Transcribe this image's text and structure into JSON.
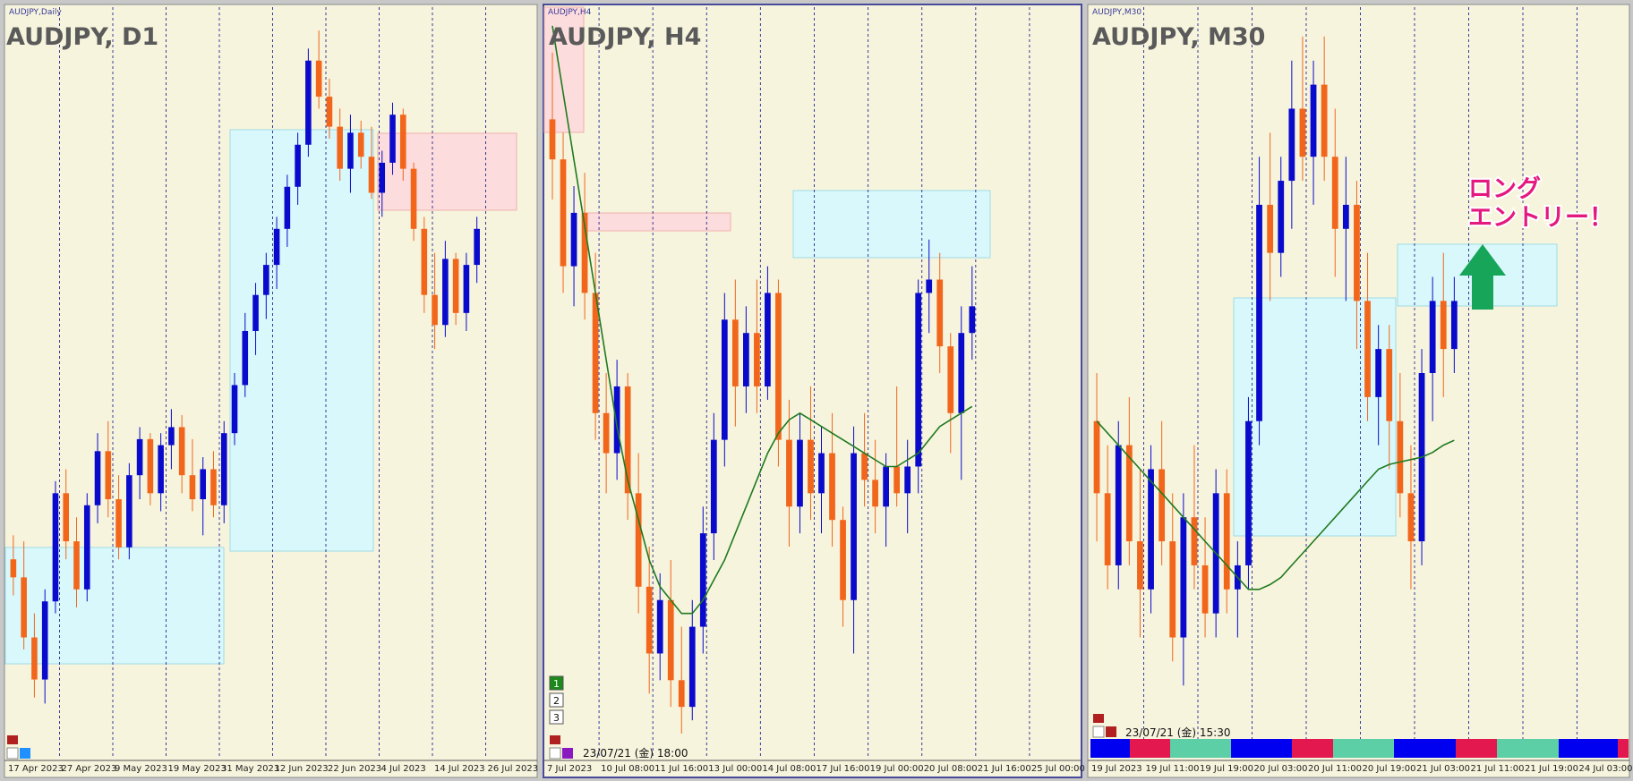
{
  "panels": [
    {
      "label": "AUDJPY,Daily",
      "title": "AUDJPY, D1",
      "date_labels": [
        "17 Apr 2023",
        "27 Apr 2023",
        "9 May 2023",
        "19 May 2023",
        "31 May 2023",
        "12 Jun 2023",
        "22 Jun 2023",
        "4 Jul 2023",
        "14 Jul 2023",
        "26 Jul 2023"
      ],
      "chart_data": {
        "type": "candlestick",
        "up_color": "#0a0acd",
        "down_color": "#f2661c",
        "ylim": [
          86,
          98
        ],
        "ohlc": [
          [
            88.9,
            89.3,
            88.3,
            88.6
          ],
          [
            88.6,
            89.2,
            87.4,
            87.6
          ],
          [
            87.6,
            88.0,
            86.6,
            86.9
          ],
          [
            86.9,
            88.4,
            86.5,
            88.2
          ],
          [
            88.2,
            90.2,
            88.0,
            90.0
          ],
          [
            90.0,
            90.4,
            88.9,
            89.2
          ],
          [
            89.2,
            89.6,
            88.1,
            88.4
          ],
          [
            88.4,
            90.0,
            88.2,
            89.8
          ],
          [
            89.8,
            91.0,
            89.5,
            90.7
          ],
          [
            90.7,
            91.2,
            89.6,
            89.9
          ],
          [
            89.9,
            90.3,
            88.9,
            89.1
          ],
          [
            89.1,
            90.5,
            88.9,
            90.3
          ],
          [
            90.3,
            91.1,
            89.9,
            90.9
          ],
          [
            90.9,
            91.0,
            89.8,
            90.0
          ],
          [
            90.0,
            91.0,
            89.7,
            90.8
          ],
          [
            90.8,
            91.4,
            90.4,
            91.1
          ],
          [
            91.1,
            91.3,
            90.0,
            90.3
          ],
          [
            90.3,
            90.9,
            89.7,
            89.9
          ],
          [
            89.9,
            90.6,
            89.3,
            90.4
          ],
          [
            90.4,
            90.7,
            89.6,
            89.8
          ],
          [
            89.8,
            91.2,
            89.5,
            91.0
          ],
          [
            91.0,
            92.0,
            90.8,
            91.8
          ],
          [
            91.8,
            93.0,
            91.6,
            92.7
          ],
          [
            92.7,
            93.5,
            92.3,
            93.3
          ],
          [
            93.3,
            94.0,
            92.9,
            93.8
          ],
          [
            93.8,
            94.6,
            93.4,
            94.4
          ],
          [
            94.4,
            95.3,
            94.1,
            95.1
          ],
          [
            95.1,
            96.0,
            94.8,
            95.8
          ],
          [
            95.8,
            97.4,
            95.6,
            97.2
          ],
          [
            97.2,
            97.7,
            96.4,
            96.6
          ],
          [
            96.6,
            96.9,
            95.9,
            96.1
          ],
          [
            96.1,
            96.4,
            95.2,
            95.4
          ],
          [
            95.4,
            96.3,
            95.0,
            96.0
          ],
          [
            96.0,
            96.2,
            95.4,
            95.6
          ],
          [
            95.6,
            96.1,
            94.9,
            95.0
          ],
          [
            95.0,
            95.7,
            94.6,
            95.5
          ],
          [
            95.5,
            96.5,
            95.3,
            96.3
          ],
          [
            96.3,
            96.4,
            95.2,
            95.4
          ],
          [
            95.4,
            95.5,
            94.2,
            94.4
          ],
          [
            94.4,
            94.6,
            93.0,
            93.3
          ],
          [
            93.3,
            94.0,
            92.4,
            92.8
          ],
          [
            92.8,
            94.2,
            92.6,
            93.9
          ],
          [
            93.9,
            94.0,
            92.8,
            93.0
          ],
          [
            93.0,
            94.0,
            92.7,
            93.8
          ],
          [
            93.8,
            94.6,
            93.5,
            94.4
          ]
        ]
      }
    },
    {
      "label": "AUDJPY,H4",
      "title": "AUDJPY, H4",
      "timestamp": "23/07/21 (金) 18:00",
      "buttons": [
        "1",
        "2",
        "3"
      ],
      "date_labels": [
        "7 Jul 2023",
        "10 Jul 08:00",
        "11 Jul 16:00",
        "13 Jul 00:00",
        "14 Jul 08:00",
        "17 Jul 16:00",
        "19 Jul 00:00",
        "20 Jul 08:00",
        "21 Jul 16:00",
        "25 Jul 00:00"
      ],
      "chart_data": {
        "type": "candlestick",
        "up_color": "#0a0acd",
        "down_color": "#f2661c",
        "ma_color": "#1f7a1f",
        "ylim": [
          91.2,
          96.6
        ],
        "ohlc": [
          [
            95.8,
            96.3,
            95.2,
            95.5
          ],
          [
            95.5,
            95.7,
            94.5,
            94.7
          ],
          [
            94.7,
            95.3,
            94.4,
            95.1
          ],
          [
            95.1,
            95.4,
            94.3,
            94.5
          ],
          [
            94.5,
            94.8,
            93.4,
            93.6
          ],
          [
            93.6,
            93.9,
            93.0,
            93.3
          ],
          [
            93.3,
            94.0,
            93.1,
            93.8
          ],
          [
            93.8,
            93.9,
            92.8,
            93.0
          ],
          [
            93.0,
            93.3,
            92.1,
            92.3
          ],
          [
            92.3,
            92.6,
            91.5,
            91.8
          ],
          [
            91.8,
            92.4,
            91.6,
            92.2
          ],
          [
            92.2,
            92.5,
            91.4,
            91.6
          ],
          [
            91.6,
            92.0,
            91.2,
            91.4
          ],
          [
            91.4,
            92.2,
            91.3,
            92.0
          ],
          [
            92.0,
            92.9,
            91.8,
            92.7
          ],
          [
            92.7,
            93.6,
            92.5,
            93.4
          ],
          [
            93.4,
            94.5,
            93.2,
            94.3
          ],
          [
            94.3,
            94.6,
            93.5,
            93.8
          ],
          [
            93.8,
            94.4,
            93.6,
            94.2
          ],
          [
            94.2,
            94.6,
            93.6,
            93.8
          ],
          [
            93.8,
            94.7,
            93.7,
            94.5
          ],
          [
            94.5,
            94.6,
            93.2,
            93.4
          ],
          [
            93.4,
            93.7,
            92.6,
            92.9
          ],
          [
            92.9,
            93.6,
            92.7,
            93.4
          ],
          [
            93.4,
            93.8,
            92.8,
            93.0
          ],
          [
            93.0,
            93.5,
            92.7,
            93.3
          ],
          [
            93.3,
            93.6,
            92.6,
            92.8
          ],
          [
            92.8,
            92.9,
            92.0,
            92.2
          ],
          [
            92.2,
            93.5,
            91.8,
            93.3
          ],
          [
            93.3,
            93.6,
            92.9,
            93.1
          ],
          [
            93.1,
            93.4,
            92.7,
            92.9
          ],
          [
            92.9,
            93.3,
            92.6,
            93.2
          ],
          [
            93.2,
            93.8,
            92.9,
            93.0
          ],
          [
            93.0,
            93.4,
            92.7,
            93.2
          ],
          [
            93.2,
            94.6,
            93.0,
            94.5
          ],
          [
            94.5,
            94.9,
            94.2,
            94.6
          ],
          [
            94.6,
            94.8,
            93.9,
            94.1
          ],
          [
            94.1,
            94.2,
            93.3,
            93.6
          ],
          [
            93.6,
            94.4,
            93.1,
            94.2
          ],
          [
            94.2,
            94.7,
            94.0,
            94.4
          ]
        ],
        "ma": [
          96.5,
          96.0,
          95.5,
          95.0,
          94.5,
          94.0,
          93.5,
          93.1,
          92.8,
          92.5,
          92.3,
          92.2,
          92.1,
          92.1,
          92.2,
          92.35,
          92.5,
          92.7,
          92.9,
          93.1,
          93.3,
          93.45,
          93.55,
          93.6,
          93.55,
          93.5,
          93.45,
          93.4,
          93.35,
          93.3,
          93.25,
          93.2,
          93.2,
          93.25,
          93.3,
          93.4,
          93.5,
          93.55,
          93.6,
          93.65
        ]
      }
    },
    {
      "label": "AUDJPY,M30",
      "title": "AUDJPY, M30",
      "timestamp": "23/07/21 (金) 15:30",
      "annotation": [
        "ロング",
        "エントリー！"
      ],
      "date_labels": [
        "19 Jul 2023",
        "19 Jul 11:00",
        "19 Jul 19:00",
        "20 Jul 03:00",
        "20 Jul 11:00",
        "20 Jul 19:00",
        "21 Jul 03:00",
        "21 Jul 11:00",
        "21 Jul 19:00",
        "24 Jul 03:00"
      ],
      "chart_data": {
        "type": "candlestick",
        "up_color": "#0a0acd",
        "down_color": "#f2661c",
        "ma_color": "#1f7a1f",
        "ylim": [
          92.6,
          95.6
        ],
        "ohlc": [
          [
            93.9,
            94.1,
            93.4,
            93.6
          ],
          [
            93.6,
            93.8,
            93.2,
            93.3
          ],
          [
            93.3,
            93.9,
            93.2,
            93.8
          ],
          [
            93.8,
            94.0,
            93.3,
            93.4
          ],
          [
            93.4,
            93.7,
            93.0,
            93.2
          ],
          [
            93.2,
            93.8,
            93.1,
            93.7
          ],
          [
            93.7,
            93.9,
            93.3,
            93.4
          ],
          [
            93.4,
            93.6,
            92.9,
            93.0
          ],
          [
            93.0,
            93.6,
            92.8,
            93.5
          ],
          [
            93.5,
            93.8,
            93.2,
            93.3
          ],
          [
            93.3,
            93.5,
            93.0,
            93.1
          ],
          [
            93.1,
            93.7,
            93.0,
            93.6
          ],
          [
            93.6,
            93.7,
            93.1,
            93.2
          ],
          [
            93.2,
            93.4,
            93.0,
            93.3
          ],
          [
            93.3,
            94.0,
            93.2,
            93.9
          ],
          [
            93.9,
            95.0,
            93.8,
            94.8
          ],
          [
            94.8,
            95.1,
            94.4,
            94.6
          ],
          [
            94.6,
            95.0,
            94.5,
            94.9
          ],
          [
            94.9,
            95.4,
            94.7,
            95.2
          ],
          [
            95.2,
            95.5,
            94.9,
            95.0
          ],
          [
            95.0,
            95.4,
            94.8,
            95.3
          ],
          [
            95.3,
            95.5,
            94.9,
            95.0
          ],
          [
            95.0,
            95.2,
            94.5,
            94.7
          ],
          [
            94.7,
            95.0,
            94.4,
            94.8
          ],
          [
            94.8,
            94.9,
            94.2,
            94.4
          ],
          [
            94.4,
            94.6,
            93.9,
            94.0
          ],
          [
            94.0,
            94.3,
            93.8,
            94.2
          ],
          [
            94.2,
            94.3,
            93.7,
            93.9
          ],
          [
            93.9,
            94.1,
            93.5,
            93.6
          ],
          [
            93.6,
            93.8,
            93.2,
            93.4
          ],
          [
            93.4,
            94.2,
            93.3,
            94.1
          ],
          [
            94.1,
            94.5,
            93.9,
            94.4
          ],
          [
            94.4,
            94.6,
            94.0,
            94.2
          ],
          [
            94.2,
            94.5,
            94.1,
            94.4
          ]
        ],
        "ma": [
          93.9,
          93.85,
          93.8,
          93.75,
          93.7,
          93.65,
          93.6,
          93.55,
          93.5,
          93.45,
          93.4,
          93.35,
          93.3,
          93.25,
          93.2,
          93.2,
          93.22,
          93.25,
          93.3,
          93.35,
          93.4,
          93.45,
          93.5,
          93.55,
          93.6,
          93.65,
          93.7,
          93.72,
          93.73,
          93.74,
          93.75,
          93.77,
          93.8,
          93.82
        ]
      }
    }
  ]
}
